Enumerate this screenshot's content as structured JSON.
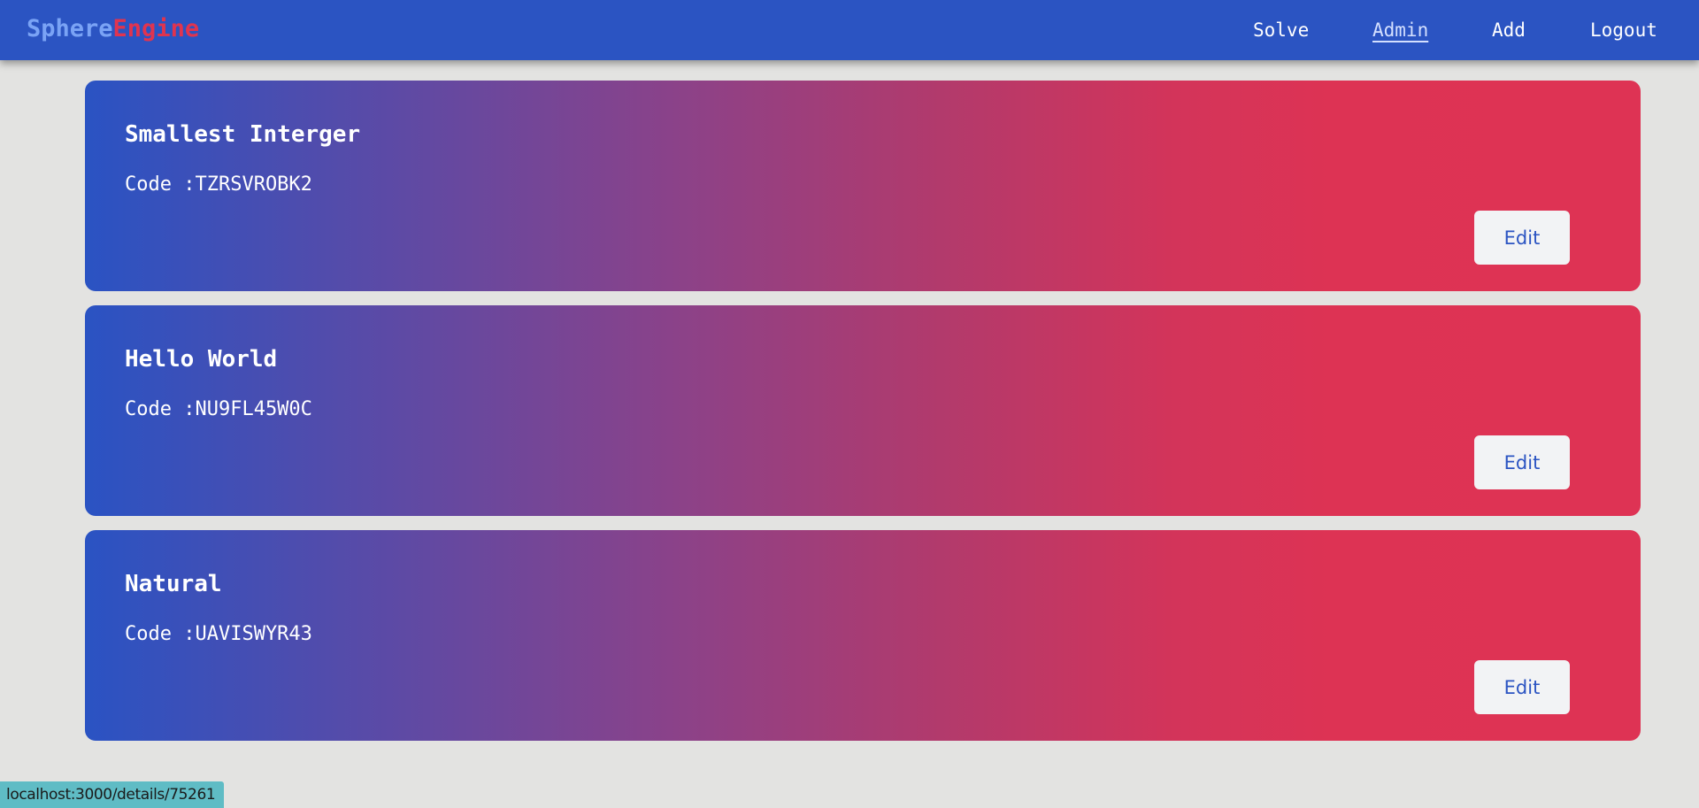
{
  "brand": {
    "part1": "Sphere",
    "part2": "Engine"
  },
  "nav": {
    "items": [
      {
        "label": "Solve",
        "active": false
      },
      {
        "label": "Admin",
        "active": true
      },
      {
        "label": "Add",
        "active": false
      },
      {
        "label": "Logout",
        "active": false
      }
    ]
  },
  "problems": [
    {
      "title": "Smallest Interger",
      "code": "Code :TZRSVROBK2",
      "edit_label": "Edit"
    },
    {
      "title": "Hello World",
      "code": "Code :NU9FL45W0C",
      "edit_label": "Edit"
    },
    {
      "title": "Natural",
      "code": "Code :UAVISWYR43",
      "edit_label": "Edit"
    }
  ],
  "status_bar": {
    "url": "localhost:3000/details/75261"
  },
  "colors": {
    "navbar": "#2b54c2",
    "brand_part1": "#7aa3f5",
    "brand_part2": "#e0344f",
    "gradient_start": "#2a53c3",
    "gradient_end": "#de3354",
    "page_background": "#e3e3e1"
  }
}
